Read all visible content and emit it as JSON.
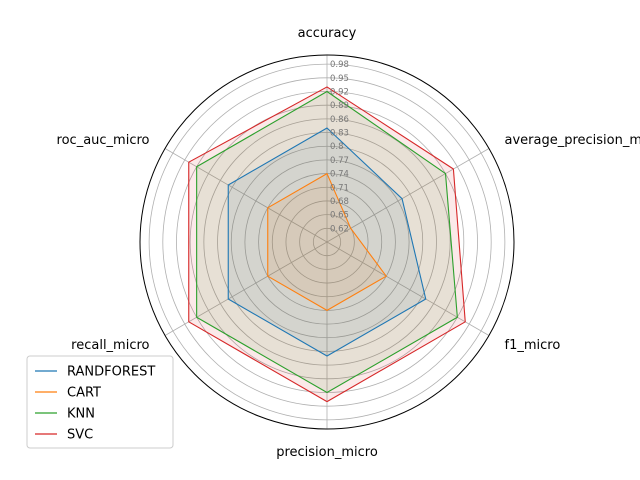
{
  "chart_data": {
    "type": "radar",
    "axes": [
      "accuracy",
      "average_precision_micro",
      "f1_micro",
      "precision_micro",
      "recall_micro",
      "roc_auc_micro"
    ],
    "rlim": [
      0.59,
      1.0
    ],
    "rticks": [
      0.62,
      0.65,
      0.68,
      0.71,
      0.74,
      0.77,
      0.8,
      0.83,
      0.86,
      0.89,
      0.92,
      0.95,
      0.98
    ],
    "grid": true,
    "legend_position": "lower-left",
    "series": [
      {
        "name": "RANDFOREST",
        "color": "#1f77b4",
        "values": [
          0.84,
          0.78,
          0.84,
          0.84,
          0.84,
          0.84
        ]
      },
      {
        "name": "CART",
        "color": "#ff7f0e",
        "values": [
          0.74,
          0.65,
          0.74,
          0.74,
          0.74,
          0.74
        ]
      },
      {
        "name": "KNN",
        "color": "#2ca02c",
        "values": [
          0.92,
          0.89,
          0.92,
          0.92,
          0.92,
          0.92
        ]
      },
      {
        "name": "SVC",
        "color": "#d62728",
        "values": [
          0.93,
          0.91,
          0.94,
          0.94,
          0.94,
          0.94
        ]
      }
    ]
  }
}
